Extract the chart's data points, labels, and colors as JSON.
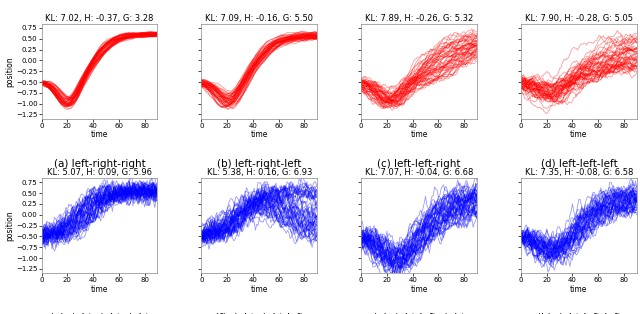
{
  "panels": [
    {
      "title": "KL: 7.02, H: -0.37, G: 3.28",
      "label": "(a) left-right-right",
      "color": "red",
      "row": 0,
      "col": 0
    },
    {
      "title": "KL: 7.09, H: -0.16, G: 5.50",
      "label": "(b) left-right-left",
      "color": "red",
      "row": 0,
      "col": 1
    },
    {
      "title": "KL: 7.89, H: -0.26, G: 5.32",
      "label": "(c) left-left-right",
      "color": "red",
      "row": 0,
      "col": 2
    },
    {
      "title": "KL: 7.90, H: -0.28, G: 5.05",
      "label": "(d) left-left-left",
      "color": "red",
      "row": 0,
      "col": 3
    },
    {
      "title": "KL: 5.07, H: 0.09, G: 5.96",
      "label": "(e) right-right-right",
      "color": "blue",
      "row": 1,
      "col": 0
    },
    {
      "title": "KL: 5.38, H: 0.16, G: 6.93",
      "label": "(f) right-right-left",
      "color": "blue",
      "row": 1,
      "col": 1
    },
    {
      "title": "KL: 7.07, H: -0.04, G: 6.68",
      "label": "(g) right-left-right",
      "color": "blue",
      "row": 1,
      "col": 2
    },
    {
      "title": "KL: 7.35, H: -0.08, G: 6.58",
      "label": "(h) right-left-left",
      "color": "blue",
      "row": 1,
      "col": 3
    }
  ],
  "ylim": [
    -1.35,
    0.85
  ],
  "xlim": [
    0,
    90
  ],
  "yticks": [
    0.75,
    0.5,
    0.25,
    0.0,
    -0.25,
    -0.5,
    -0.75,
    -1.0,
    -1.25
  ],
  "xticks": [
    0,
    20,
    40,
    60,
    80
  ],
  "xlabel": "time",
  "ylabel": "position",
  "n_trajectories": 50,
  "alpha": 0.4,
  "linewidth": 0.6,
  "title_fontsize": 6.0,
  "label_fontsize": 7.5,
  "tick_fontsize": 5.0,
  "axlabel_fontsize": 5.5
}
